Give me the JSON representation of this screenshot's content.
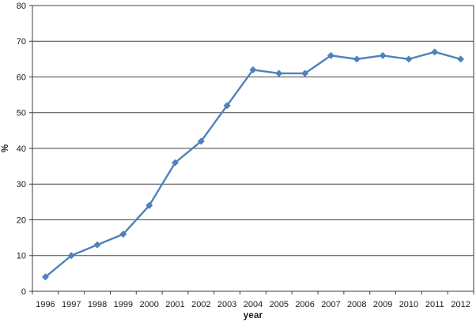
{
  "chart_data": {
    "type": "line",
    "categories": [
      "1996",
      "1997",
      "1998",
      "1999",
      "2000",
      "2001",
      "2002",
      "2003",
      "2004",
      "2005",
      "2006",
      "2007",
      "2008",
      "2009",
      "2010",
      "2011",
      "2012"
    ],
    "values": [
      4,
      10,
      13,
      16,
      24,
      36,
      42,
      52,
      62,
      61,
      61,
      66,
      65,
      66,
      65,
      67,
      65
    ],
    "title": "",
    "xlabel": "year",
    "ylabel": "%",
    "ylim": [
      0,
      80
    ],
    "ytick_interval": 10,
    "ytick_labels": [
      "0",
      "10",
      "20",
      "30",
      "40",
      "50",
      "60",
      "70",
      "80"
    ],
    "grid": true,
    "legend": false,
    "marker": "diamond",
    "colors": {
      "series_line": "#4F81BD",
      "marker_fill": "#4F81BD",
      "gridline": "#444444",
      "axis_line": "#3c3c3c",
      "tick_label": "#1a1a1a",
      "background": "#ffffff"
    }
  }
}
